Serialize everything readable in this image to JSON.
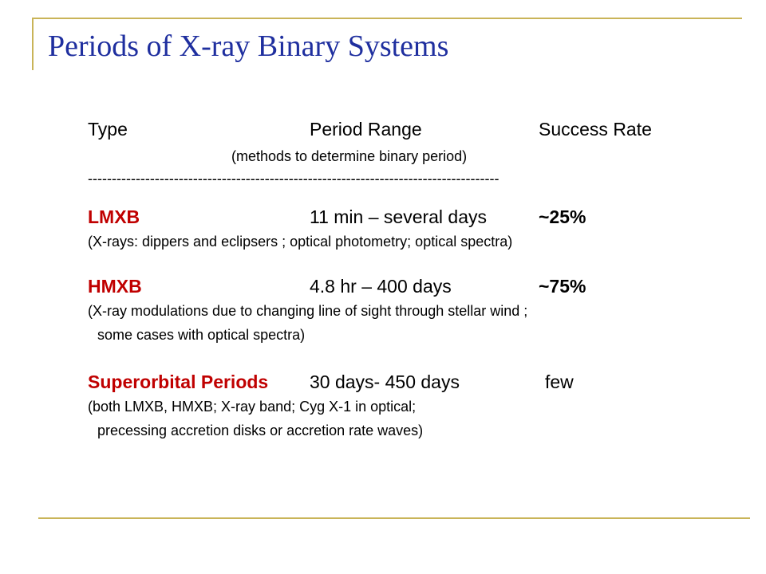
{
  "title": "Periods of X-ray Binary Systems",
  "header": {
    "type": "Type",
    "period": "Period Range",
    "success": "Success Rate",
    "methods_note": "(methods to determine binary period)",
    "divider": "--------------------------------------------------------------------------------------"
  },
  "rows": [
    {
      "name": "LMXB",
      "period": "11 min – several days",
      "success": "~25%",
      "note_line1": "(X-rays: dippers and eclipsers ; optical photometry; optical spectra)",
      "note_line2": ""
    },
    {
      "name": "HMXB",
      "period": "4.8 hr – 400 days",
      "success": "~75%",
      "note_line1": "(X-ray modulations due to changing line of sight through stellar wind ;",
      "note_line2": "some cases with optical spectra)"
    },
    {
      "name": "Superorbital Periods",
      "period": "30 days- 450 days",
      "success": "few",
      "note_line1": "(both LMXB, HMXB;  X-ray band;  Cyg X-1 in optical;",
      "note_line2": "precessing accretion disks or accretion rate waves)"
    }
  ],
  "colors": {
    "title": "#1f2f9f",
    "accent_line": "#c9b458",
    "row_name": "#c00000"
  }
}
